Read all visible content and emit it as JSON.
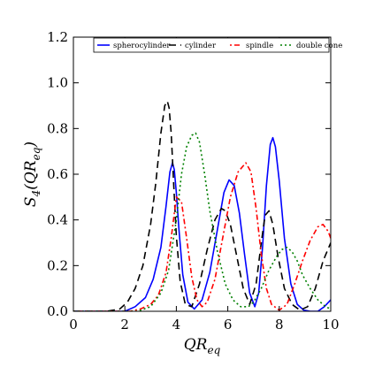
{
  "chart_data": {
    "type": "line",
    "xlabel": "QR",
    "xlabel_sub": "eq",
    "ylabel": "S",
    "ylabel_sub4": "4",
    "ylabel_arg": "(QR",
    "ylabel_arg_sub": "eq",
    "ylabel_close": ")",
    "xlim": [
      0,
      10
    ],
    "ylim": [
      0,
      1.2
    ],
    "xticks": [
      0,
      2,
      4,
      6,
      8,
      10
    ],
    "xtick_labels": [
      "0",
      "2",
      "4",
      "6",
      "8",
      "10"
    ],
    "yticks": [
      0.0,
      0.2,
      0.4,
      0.6,
      0.8,
      1.0,
      1.2
    ],
    "ytick_labels": [
      "0.0",
      "0.2",
      "0.4",
      "0.6",
      "0.8",
      "1.0",
      "1.2"
    ],
    "grid": false,
    "legend_position": "top",
    "series": [
      {
        "name": "spherocylinder",
        "color": "#0000ff",
        "dash": "solid",
        "x": [
          0,
          1.5,
          2.0,
          2.4,
          2.8,
          3.1,
          3.4,
          3.6,
          3.75,
          3.85,
          3.92,
          4.0,
          4.1,
          4.25,
          4.45,
          4.7,
          5.0,
          5.3,
          5.6,
          5.85,
          6.05,
          6.25,
          6.45,
          6.65,
          6.85,
          7.05,
          7.2,
          7.35,
          7.5,
          7.65,
          7.75,
          7.85,
          8.0,
          8.2,
          8.45,
          8.7,
          8.95,
          9.2,
          9.5,
          9.75,
          10.0
        ],
        "y": [
          0,
          0,
          0,
          0.02,
          0.06,
          0.14,
          0.28,
          0.46,
          0.61,
          0.65,
          0.62,
          0.52,
          0.36,
          0.16,
          0.04,
          0.01,
          0.05,
          0.17,
          0.36,
          0.52,
          0.575,
          0.55,
          0.43,
          0.25,
          0.08,
          0.02,
          0.08,
          0.28,
          0.55,
          0.73,
          0.76,
          0.72,
          0.57,
          0.32,
          0.12,
          0.03,
          0.005,
          0.0,
          0.0,
          0.02,
          0.05
        ]
      },
      {
        "name": "cylinder",
        "color": "#000000",
        "dash": "8,5",
        "x": [
          0,
          1.3,
          1.8,
          2.1,
          2.4,
          2.7,
          3.0,
          3.2,
          3.4,
          3.55,
          3.65,
          3.72,
          3.8,
          3.9,
          4.0,
          4.15,
          4.35,
          4.6,
          4.9,
          5.2,
          5.5,
          5.75,
          5.9,
          6.1,
          6.35,
          6.6,
          6.85,
          7.1,
          7.3,
          7.45,
          7.6,
          7.75,
          7.95,
          8.2,
          8.5,
          8.8,
          9.1,
          9.4,
          9.7,
          10.0
        ],
        "y": [
          0,
          0,
          0.01,
          0.04,
          0.1,
          0.2,
          0.38,
          0.56,
          0.78,
          0.9,
          0.92,
          0.89,
          0.78,
          0.55,
          0.33,
          0.13,
          0.03,
          0.02,
          0.12,
          0.27,
          0.4,
          0.45,
          0.44,
          0.38,
          0.24,
          0.1,
          0.03,
          0.12,
          0.3,
          0.42,
          0.44,
          0.38,
          0.24,
          0.1,
          0.03,
          0.005,
          0.02,
          0.1,
          0.22,
          0.3
        ]
      },
      {
        "name": "spindle",
        "color": "#ff0000",
        "dash": "2,3,6,3",
        "x": [
          0,
          2.2,
          2.6,
          3.0,
          3.3,
          3.6,
          3.8,
          4.0,
          4.2,
          4.4,
          4.6,
          4.8,
          5.0,
          5.2,
          5.5,
          5.8,
          6.1,
          6.4,
          6.7,
          6.9,
          7.1,
          7.3,
          7.5,
          7.7,
          8.0,
          8.3,
          8.6,
          8.9,
          9.2,
          9.5,
          9.7,
          9.9,
          10.0
        ],
        "y": [
          0,
          0,
          0.01,
          0.03,
          0.07,
          0.17,
          0.32,
          0.5,
          0.48,
          0.32,
          0.15,
          0.05,
          0.02,
          0.04,
          0.14,
          0.32,
          0.5,
          0.61,
          0.65,
          0.61,
          0.45,
          0.25,
          0.1,
          0.03,
          0.005,
          0.03,
          0.12,
          0.22,
          0.31,
          0.37,
          0.38,
          0.35,
          0.32
        ]
      },
      {
        "name": "double cone",
        "color": "#008000",
        "dash": "2,3",
        "x": [
          0,
          2.5,
          3.0,
          3.4,
          3.7,
          4.0,
          4.2,
          4.4,
          4.6,
          4.75,
          4.9,
          5.1,
          5.3,
          5.6,
          5.9,
          6.2,
          6.5,
          6.8,
          7.0,
          7.3,
          7.6,
          7.9,
          8.1,
          8.3,
          8.5,
          8.7,
          8.9,
          9.2,
          9.5,
          9.8,
          10.0
        ],
        "y": [
          0,
          0,
          0.02,
          0.08,
          0.18,
          0.4,
          0.6,
          0.72,
          0.77,
          0.78,
          0.74,
          0.6,
          0.44,
          0.26,
          0.12,
          0.05,
          0.02,
          0.02,
          0.04,
          0.1,
          0.18,
          0.24,
          0.27,
          0.28,
          0.26,
          0.22,
          0.16,
          0.1,
          0.05,
          0.02,
          0.01
        ]
      }
    ]
  }
}
